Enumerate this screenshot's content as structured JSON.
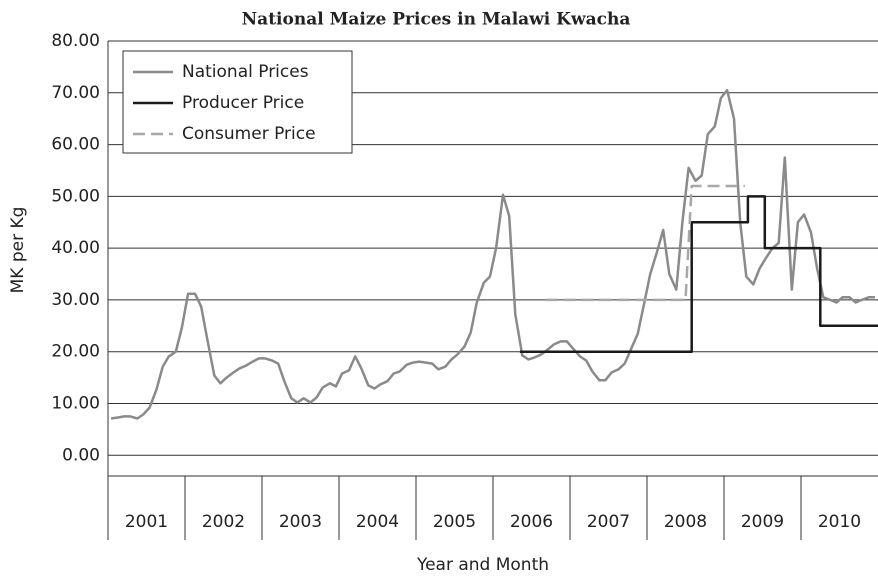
{
  "chart_data": {
    "type": "line",
    "title": "National Maize Prices in Malawi Kwacha",
    "xlabel": "Year and Month",
    "ylabel": "MK per Kg",
    "xlim": [
      2001,
      2011
    ],
    "xticks": [
      {
        "value": 2001.5,
        "label": "2001"
      },
      {
        "value": 2002.5,
        "label": "2002"
      },
      {
        "value": 2003.5,
        "label": "2003"
      },
      {
        "value": 2004.5,
        "label": "2004"
      },
      {
        "value": 2005.5,
        "label": "2005"
      },
      {
        "value": 2006.5,
        "label": "2006"
      },
      {
        "value": 2007.5,
        "label": "2007"
      },
      {
        "value": 2008.5,
        "label": "2008"
      },
      {
        "value": 2009.5,
        "label": "2009"
      },
      {
        "value": 2010.5,
        "label": "2010"
      }
    ],
    "ylim": [
      -4,
      80
    ],
    "yticks": [
      {
        "value": 0,
        "label": "0.00"
      },
      {
        "value": 10,
        "label": "10.00"
      },
      {
        "value": 20,
        "label": "20.00"
      },
      {
        "value": 30,
        "label": "30.00"
      },
      {
        "value": 40,
        "label": "40.00"
      },
      {
        "value": 50,
        "label": "50.00"
      },
      {
        "value": 60,
        "label": "60.00"
      },
      {
        "value": 70,
        "label": "70.00"
      },
      {
        "value": 80,
        "label": "80.00"
      }
    ],
    "grid": true,
    "legend": "top-left",
    "series": [
      {
        "name": "National Prices",
        "color": "#8a8a8a",
        "dash": false,
        "x": [
          2001.04,
          2001.13,
          2001.21,
          2001.29,
          2001.38,
          2001.46,
          2001.54,
          2001.63,
          2001.71,
          2001.79,
          2001.88,
          2001.96,
          2002.04,
          2002.13,
          2002.21,
          2002.29,
          2002.38,
          2002.46,
          2002.54,
          2002.63,
          2002.71,
          2002.79,
          2002.88,
          2002.96,
          2003.04,
          2003.13,
          2003.21,
          2003.29,
          2003.38,
          2003.46,
          2003.54,
          2003.63,
          2003.71,
          2003.79,
          2003.88,
          2003.96,
          2004.04,
          2004.13,
          2004.21,
          2004.29,
          2004.38,
          2004.46,
          2004.54,
          2004.63,
          2004.71,
          2004.79,
          2004.88,
          2004.96,
          2005.04,
          2005.13,
          2005.21,
          2005.29,
          2005.38,
          2005.46,
          2005.54,
          2005.63,
          2005.71,
          2005.79,
          2005.88,
          2005.96,
          2006.04,
          2006.13,
          2006.21,
          2006.29,
          2006.38,
          2006.46,
          2006.54,
          2006.63,
          2006.71,
          2006.79,
          2006.88,
          2006.96,
          2007.04,
          2007.13,
          2007.21,
          2007.29,
          2007.38,
          2007.46,
          2007.54,
          2007.63,
          2007.71,
          2007.79,
          2007.88,
          2007.96,
          2008.04,
          2008.13,
          2008.21,
          2008.29,
          2008.38,
          2008.46,
          2008.54,
          2008.63,
          2008.71,
          2008.79,
          2008.88,
          2008.96,
          2009.04,
          2009.13,
          2009.21,
          2009.29,
          2009.38,
          2009.46,
          2009.54,
          2009.63,
          2009.71,
          2009.79,
          2009.88,
          2009.96,
          2010.04,
          2010.13,
          2010.21,
          2010.29,
          2010.38,
          2010.46,
          2010.54,
          2010.63,
          2010.71,
          2010.79,
          2010.88,
          2010.96
        ],
        "values": [
          7.1,
          7.3,
          7.5,
          7.5,
          7.1,
          7.9,
          9.2,
          12.7,
          17.1,
          19.1,
          20,
          24.7,
          31.2,
          31.2,
          28.7,
          22.4,
          15.4,
          13.9,
          15,
          16,
          16.8,
          17.3,
          18.1,
          18.7,
          18.7,
          18.3,
          17.7,
          14.3,
          11,
          10.2,
          11,
          10.2,
          11.2,
          13.1,
          13.9,
          13.3,
          15.8,
          16.4,
          19.1,
          16.8,
          13.5,
          12.9,
          13.7,
          14.3,
          15.8,
          16.2,
          17.5,
          17.9,
          18.1,
          17.9,
          17.7,
          16.6,
          17.1,
          18.5,
          19.5,
          21,
          23.7,
          29.5,
          33.3,
          34.5,
          40,
          50.3,
          46.2,
          27.2,
          19.3,
          18.5,
          18.9,
          19.5,
          20.4,
          21.4,
          22,
          22,
          20.6,
          19.1,
          18.3,
          16.2,
          14.5,
          14.5,
          16,
          16.6,
          17.7,
          20.4,
          23.5,
          29.1,
          34.9,
          39.3,
          43.5,
          35,
          32,
          45,
          55.5,
          53,
          54,
          62,
          63.5,
          69,
          70.5,
          65,
          45,
          34.5,
          33,
          36,
          38,
          40,
          41,
          57.5,
          32,
          45,
          46.5,
          43,
          36,
          30.5,
          30,
          29.5,
          30.5,
          30.5,
          29.5,
          30,
          30.5,
          30.5
        ]
      },
      {
        "name": "Producer Price",
        "color": "#1a1a1a",
        "dash": false,
        "x": [
          2006.35,
          2008.58,
          2008.58,
          2009.31,
          2009.31,
          2009.53,
          2009.53,
          2010.25,
          2010.25,
          2011
        ],
        "values": [
          20,
          20,
          45,
          45,
          50,
          50,
          40,
          40,
          25,
          25
        ]
      },
      {
        "name": "Consumer Price",
        "color": "#a8a8a8",
        "dash": true,
        "x": [
          2006.68,
          2008.5,
          2008.58,
          2009.27
        ],
        "values": [
          30,
          30,
          52,
          52
        ]
      }
    ]
  }
}
